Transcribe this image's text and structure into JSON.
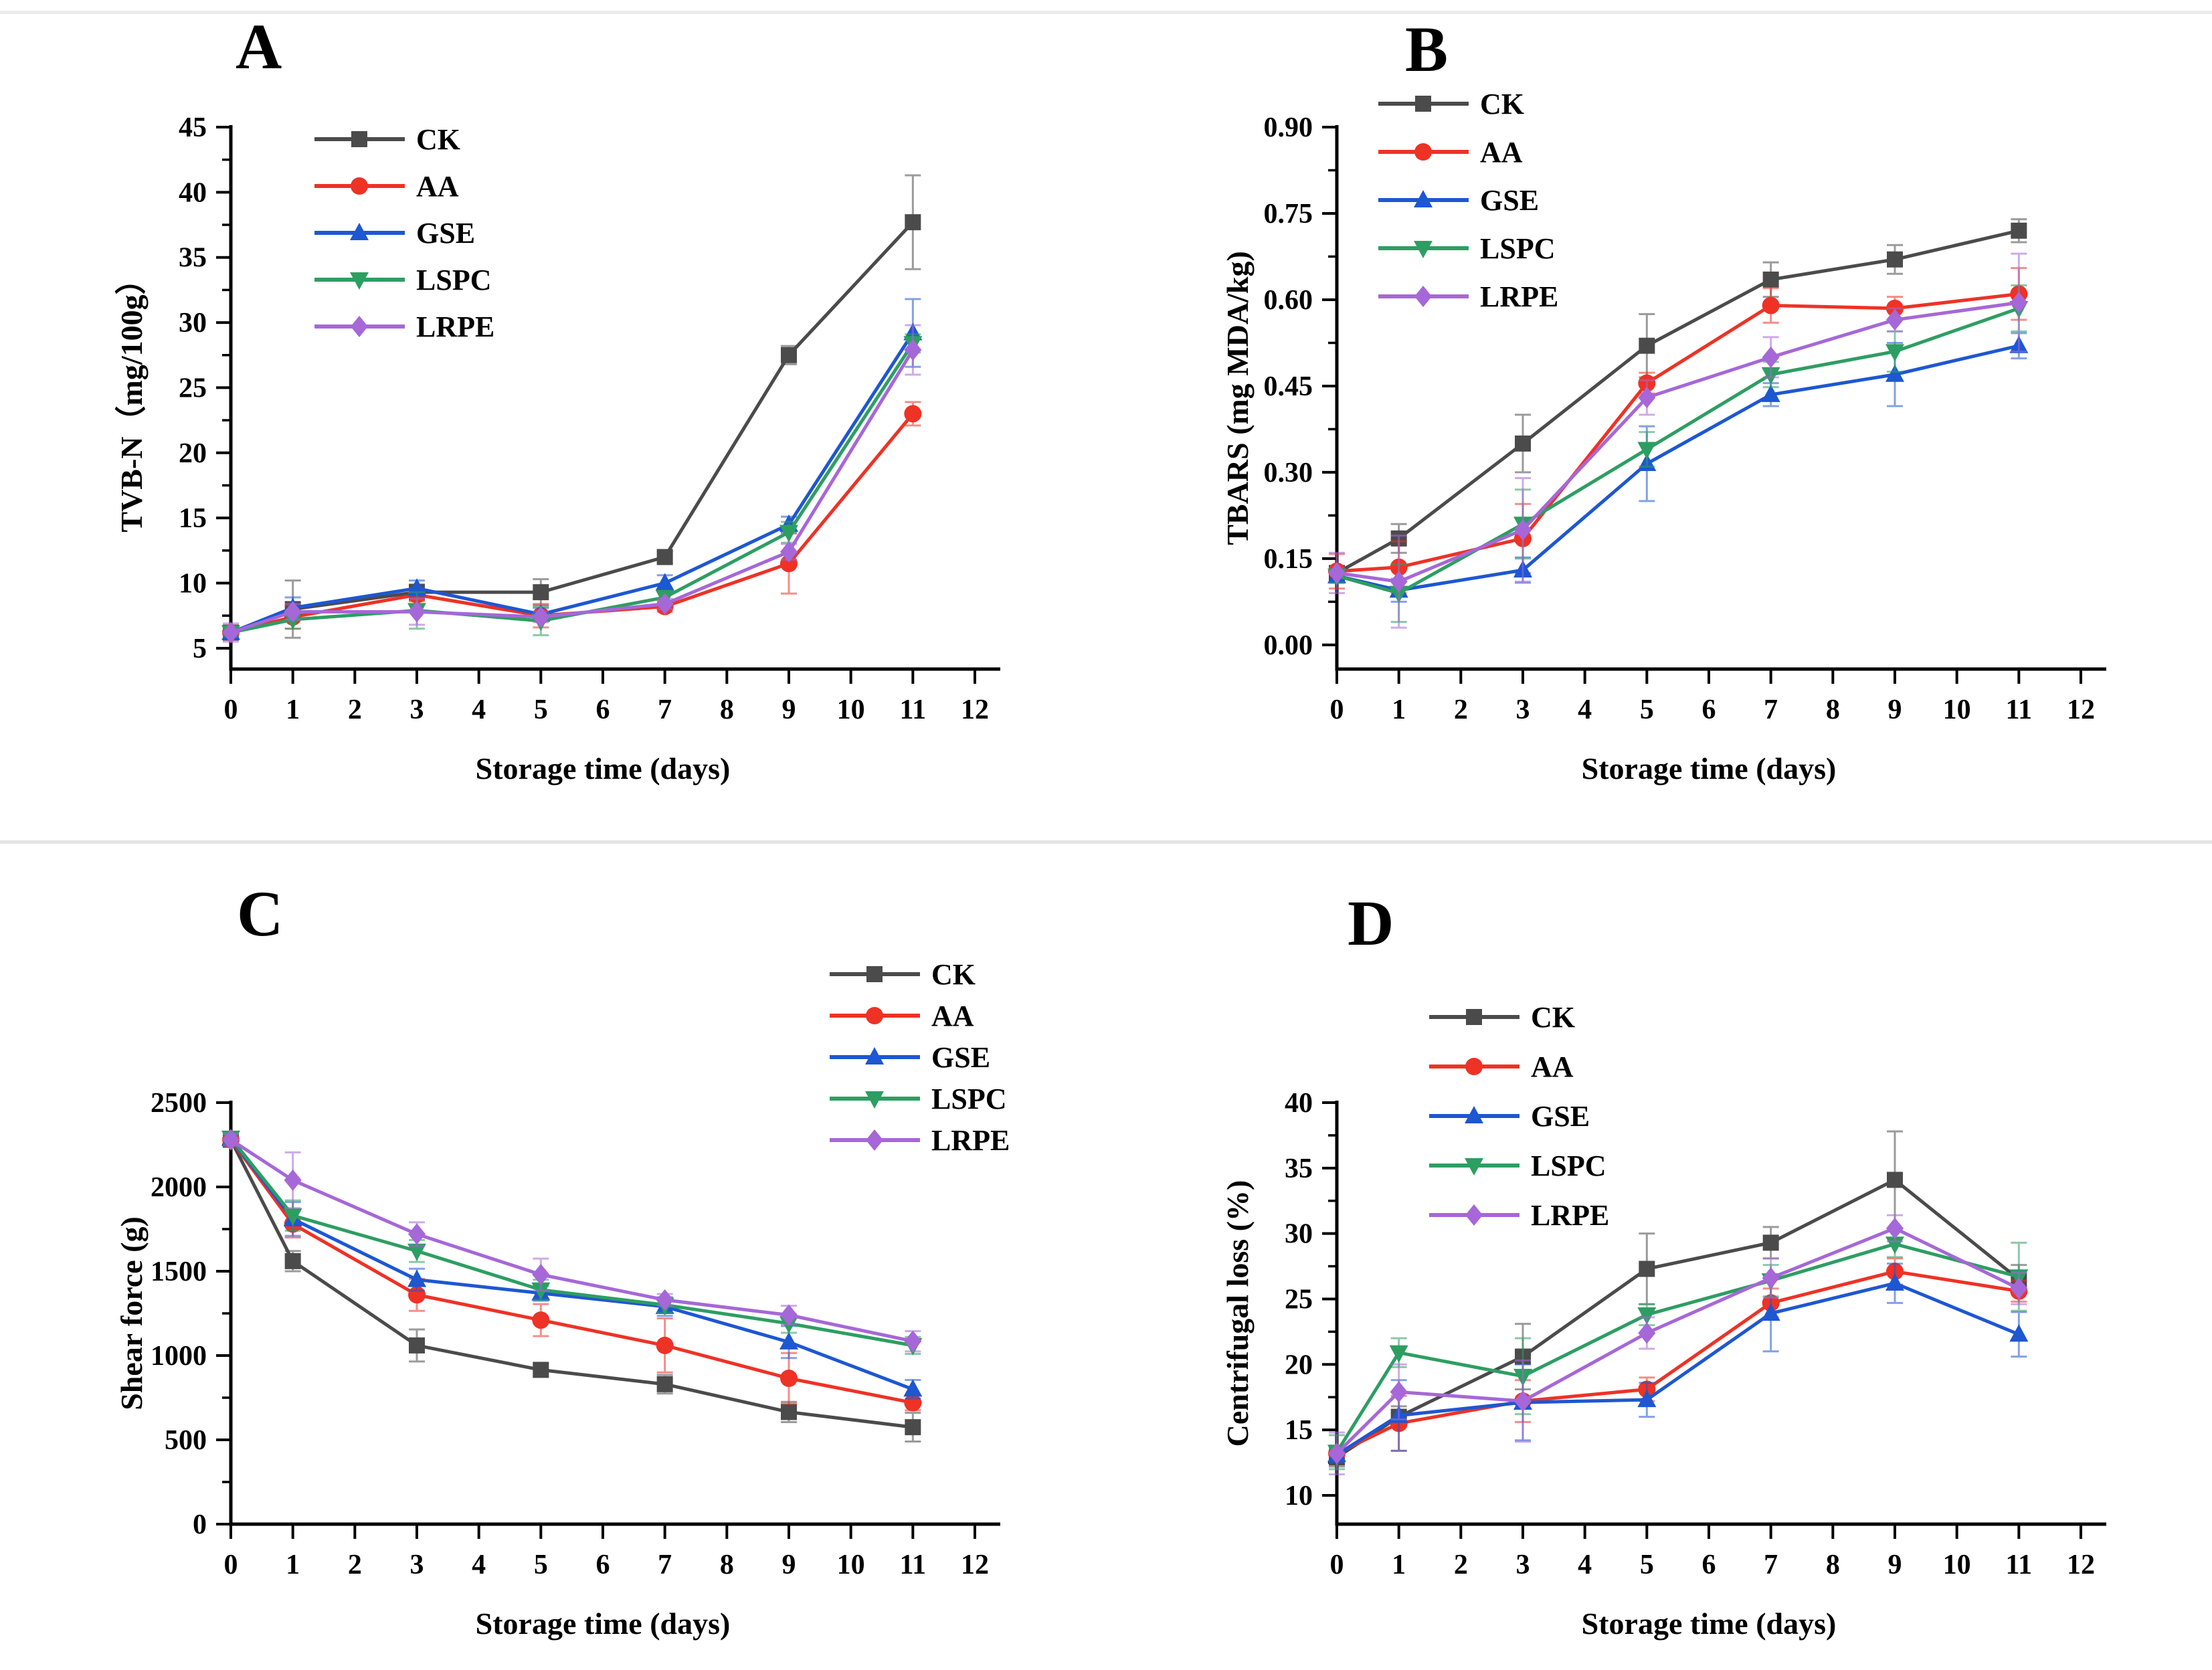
{
  "figure": {
    "background_color": "#ffffff",
    "axis_color": "#000000",
    "xlabel": "Storage time (days)",
    "x_ticks": [
      0,
      1,
      2,
      3,
      4,
      5,
      6,
      7,
      8,
      9,
      10,
      11,
      12
    ],
    "xlim": [
      0,
      12.4
    ],
    "sample_days": [
      0,
      1,
      3,
      5,
      7,
      9,
      11
    ],
    "legend_entries": [
      "CK",
      "AA",
      "GSE",
      "LSPC",
      "LRPE"
    ],
    "series_style": [
      {
        "key": "CK",
        "label": "CK",
        "color": "#4b4b4b",
        "marker": "square"
      },
      {
        "key": "AA",
        "label": "AA",
        "color": "#ee3226",
        "marker": "circle"
      },
      {
        "key": "GSE",
        "label": "GSE",
        "color": "#1d57d2",
        "marker": "triangle-up"
      },
      {
        "key": "LSPC",
        "label": "LSPC",
        "color": "#2d9e62",
        "marker": "triangle-down"
      },
      {
        "key": "LRPE",
        "label": "LRPE",
        "color": "#a667d8",
        "marker": "diamond"
      }
    ]
  },
  "chart_data": [
    {
      "panel": "A",
      "type": "line",
      "row": "top",
      "title": "",
      "xlabel": "Storage time (days)",
      "ylabel": "TVB-N（mg/100g）",
      "ylim": [
        3.4,
        45
      ],
      "yticks": [
        5,
        10,
        15,
        20,
        25,
        30,
        35,
        40,
        45
      ],
      "minor_step": 2.5,
      "ytick_decimals": 0,
      "legend": {
        "x": 470,
        "y0": 208,
        "dy": 70
      },
      "x": [
        0,
        1,
        3,
        5,
        7,
        9,
        11
      ],
      "series": [
        {
          "name": "CK",
          "values": [
            6.2,
            8.0,
            9.3,
            9.3,
            12.0,
            27.5,
            37.7
          ],
          "errors": [
            0.4,
            2.2,
            0.6,
            1.0,
            0.5,
            0.7,
            3.6
          ]
        },
        {
          "name": "AA",
          "values": [
            6.2,
            7.4,
            9.1,
            7.5,
            8.2,
            11.5,
            23.0
          ],
          "errors": [
            0.3,
            0.9,
            0.5,
            0.9,
            0.4,
            2.3,
            0.9
          ]
        },
        {
          "name": "GSE",
          "values": [
            6.2,
            8.1,
            9.6,
            7.6,
            10.0,
            14.5,
            29.2
          ],
          "errors": [
            0.3,
            0.8,
            0.6,
            0.5,
            0.6,
            0.6,
            2.6
          ]
        },
        {
          "name": "LSPC",
          "values": [
            6.2,
            7.2,
            7.9,
            7.1,
            8.9,
            13.9,
            28.4
          ],
          "errors": [
            0.3,
            0.7,
            1.4,
            1.1,
            0.5,
            0.8,
            0.7
          ]
        },
        {
          "name": "LRPE",
          "values": [
            6.2,
            7.8,
            7.8,
            7.4,
            8.4,
            12.4,
            27.9
          ],
          "errors": [
            0.7,
            0.6,
            1.0,
            0.4,
            0.4,
            0.6,
            1.9
          ]
        }
      ]
    },
    {
      "panel": "B",
      "type": "line",
      "row": "top",
      "title": "",
      "xlabel": "Storage time (days)",
      "ylabel": "TBARS (mg MDA/kg)",
      "ylim": [
        -0.042,
        0.9
      ],
      "yticks": [
        0.0,
        0.15,
        0.3,
        0.45,
        0.6,
        0.75,
        0.9
      ],
      "minor_step": 0.075,
      "ytick_decimals": 2,
      "legend": {
        "x": 407,
        "y0": 155,
        "dy": 72
      },
      "x": [
        0,
        1,
        3,
        5,
        7,
        9,
        11
      ],
      "series": [
        {
          "name": "CK",
          "values": [
            0.125,
            0.185,
            0.35,
            0.52,
            0.635,
            0.67,
            0.72
          ],
          "errors": [
            0.012,
            0.025,
            0.05,
            0.055,
            0.03,
            0.025,
            0.02
          ]
        },
        {
          "name": "AA",
          "values": [
            0.128,
            0.135,
            0.185,
            0.455,
            0.59,
            0.585,
            0.61
          ],
          "errors": [
            0.03,
            0.045,
            0.06,
            0.018,
            0.03,
            0.02,
            0.045
          ]
        },
        {
          "name": "GSE",
          "values": [
            0.12,
            0.095,
            0.13,
            0.315,
            0.435,
            0.47,
            0.52
          ],
          "errors": [
            0.012,
            0.02,
            0.022,
            0.065,
            0.02,
            0.055,
            0.022
          ]
        },
        {
          "name": "LSPC",
          "values": [
            0.12,
            0.09,
            0.21,
            0.34,
            0.47,
            0.51,
            0.585
          ],
          "errors": [
            0.012,
            0.05,
            0.06,
            0.03,
            0.022,
            0.035,
            0.04
          ]
        },
        {
          "name": "LRPE",
          "values": [
            0.125,
            0.11,
            0.2,
            0.43,
            0.5,
            0.565,
            0.595
          ],
          "errors": [
            0.035,
            0.08,
            0.09,
            0.03,
            0.035,
            0.02,
            0.085
          ]
        }
      ]
    },
    {
      "panel": "C",
      "type": "line",
      "row": "bottom",
      "title": "",
      "xlabel": "Storage time (days)",
      "ylabel": "Shear force (g)",
      "ylim": [
        0,
        2500
      ],
      "yticks": [
        0,
        500,
        1000,
        1500,
        2000,
        2500
      ],
      "minor_step": 250,
      "ytick_decimals": 0,
      "legend": {
        "x": 1240,
        "y0": 208,
        "dy": 62
      },
      "x": [
        0,
        1,
        3,
        5,
        7,
        9,
        11
      ],
      "series": [
        {
          "name": "CK",
          "values": [
            2280,
            1560,
            1060,
            915,
            830,
            665,
            575
          ],
          "errors": [
            35,
            60,
            95,
            40,
            55,
            60,
            85
          ]
        },
        {
          "name": "AA",
          "values": [
            2280,
            1780,
            1360,
            1210,
            1060,
            865,
            720
          ],
          "errors": [
            35,
            80,
            95,
            95,
            160,
            150,
            45
          ]
        },
        {
          "name": "GSE",
          "values": [
            2285,
            1810,
            1450,
            1370,
            1290,
            1080,
            800
          ],
          "errors": [
            35,
            100,
            65,
            45,
            55,
            95,
            55
          ]
        },
        {
          "name": "LSPC",
          "values": [
            2290,
            1830,
            1620,
            1390,
            1300,
            1190,
            1060
          ],
          "errors": [
            35,
            90,
            65,
            60,
            45,
            55,
            50
          ]
        },
        {
          "name": "LRPE",
          "values": [
            2280,
            2040,
            1720,
            1480,
            1330,
            1240,
            1085
          ],
          "errors": [
            35,
            165,
            70,
            95,
            35,
            55,
            60
          ]
        }
      ]
    },
    {
      "panel": "D",
      "type": "line",
      "row": "bottom",
      "title": "",
      "xlabel": "Storage time (days)",
      "ylabel": "Centrifugal loss (%)",
      "ylim": [
        7.8,
        40
      ],
      "yticks": [
        10,
        15,
        20,
        25,
        30,
        35,
        40
      ],
      "minor_step": 2.5,
      "ytick_decimals": 0,
      "legend": {
        "x": 483,
        "y0": 272,
        "dy": 74
      },
      "x": [
        0,
        1,
        3,
        5,
        7,
        9,
        11
      ],
      "series": [
        {
          "name": "CK",
          "values": [
            12.9,
            16.0,
            20.6,
            27.3,
            29.3,
            34.1,
            26.5
          ],
          "errors": [
            0.7,
            0.8,
            2.5,
            2.7,
            1.2,
            3.7,
            1.1
          ]
        },
        {
          "name": "AA",
          "values": [
            13.2,
            15.5,
            17.2,
            18.1,
            24.7,
            27.1,
            25.6
          ],
          "errors": [
            0.6,
            2.1,
            1.6,
            0.9,
            1.1,
            1.0,
            0.8
          ]
        },
        {
          "name": "GSE",
          "values": [
            13.1,
            16.1,
            17.1,
            17.3,
            23.9,
            26.2,
            22.3
          ],
          "errors": [
            0.6,
            2.7,
            2.9,
            1.3,
            2.9,
            1.5,
            1.7
          ]
        },
        {
          "name": "LSPC",
          "values": [
            13.3,
            20.9,
            19.1,
            23.8,
            26.4,
            29.2,
            26.7
          ],
          "errors": [
            1.3,
            1.1,
            2.9,
            0.8,
            1.2,
            1.0,
            2.6
          ]
        },
        {
          "name": "LRPE",
          "values": [
            13.2,
            17.9,
            17.2,
            22.4,
            26.6,
            30.4,
            25.8
          ],
          "errors": [
            1.6,
            2.1,
            3.1,
            1.2,
            1.5,
            1.0,
            1.2
          ]
        }
      ]
    }
  ]
}
